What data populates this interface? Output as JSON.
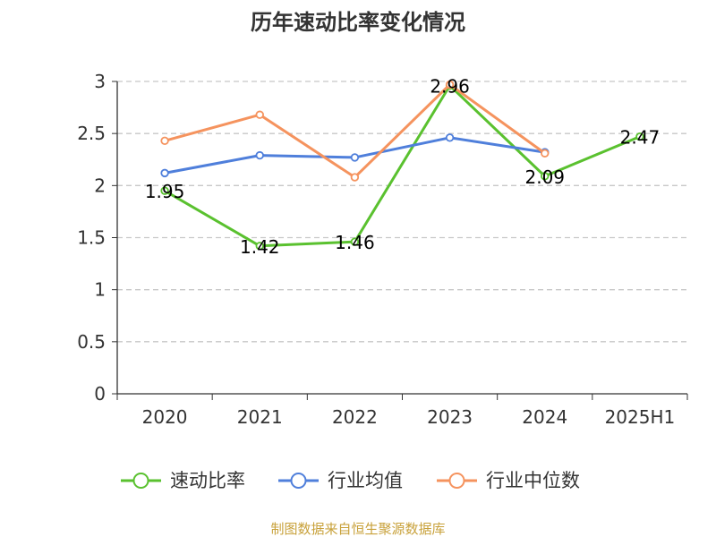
{
  "chart_data": {
    "type": "line",
    "title": "历年速动比率变化情况",
    "categories": [
      "2020",
      "2021",
      "2022",
      "2023",
      "2024",
      "2025H1"
    ],
    "y_ticks": [
      "0",
      "0.5",
      "1",
      "1.5",
      "2",
      "2.5",
      "3"
    ],
    "ylim": [
      0,
      3
    ],
    "grid": true,
    "legend_position": "bottom",
    "series": [
      {
        "name": "速动比率",
        "color": "#5ac12f",
        "values": [
          1.95,
          1.42,
          1.46,
          2.96,
          2.09,
          2.47
        ],
        "labels": [
          "1.95",
          "1.42",
          "1.46",
          "2.96",
          "2.09",
          "2.47"
        ]
      },
      {
        "name": "行业均值",
        "color": "#4f7fdb",
        "values": [
          2.12,
          2.29,
          2.27,
          2.46,
          2.32,
          null
        ]
      },
      {
        "name": "行业中位数",
        "color": "#f5935e",
        "values": [
          2.43,
          2.68,
          2.08,
          2.97,
          2.31,
          null
        ]
      }
    ],
    "source": "制图数据来自恒生聚源数据库"
  }
}
